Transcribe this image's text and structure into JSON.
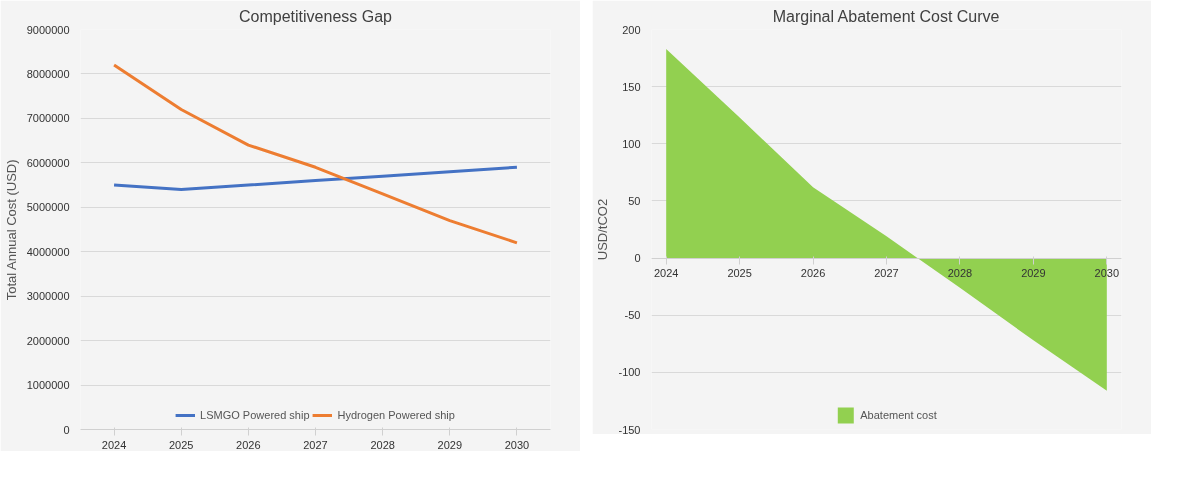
{
  "chart_data": [
    {
      "type": "line",
      "title": "Competitiveness Gap",
      "ylabel": "Total Annual Cost (USD)",
      "categories": [
        "2024",
        "2025",
        "2026",
        "2027",
        "2028",
        "2029",
        "2030"
      ],
      "series": [
        {
          "name": "LSMGO Powered ship",
          "color": "#4472c4",
          "values": [
            5500000,
            5400000,
            5500000,
            5600000,
            5700000,
            5800000,
            5900000
          ]
        },
        {
          "name": "Hydrogen Powered ship",
          "color": "#ed7d31",
          "values": [
            8200000,
            7200000,
            6400000,
            5900000,
            5300000,
            4700000,
            4200000
          ]
        }
      ],
      "ylim": [
        0,
        9000000
      ],
      "yticks": [
        0,
        1000000,
        2000000,
        3000000,
        4000000,
        5000000,
        6000000,
        7000000,
        8000000,
        9000000
      ],
      "grid": "y",
      "legend": "bottom",
      "marker": "none",
      "line_style": "solid"
    },
    {
      "type": "area",
      "title": "Marginal Abatement Cost Curve",
      "ylabel": "USD/tCO2",
      "categories": [
        "2024",
        "2025",
        "2026",
        "2027",
        "2028",
        "2029",
        "2030"
      ],
      "series": [
        {
          "name": "Abatement cost",
          "color": "#92d050",
          "values": [
            183,
            123,
            62,
            19,
            -26,
            -72,
            -116
          ]
        }
      ],
      "ylim": [
        -150,
        200
      ],
      "yticks": [
        -150,
        -100,
        -50,
        0,
        50,
        100,
        150,
        200
      ],
      "grid": "y",
      "legend": "bottom"
    }
  ]
}
